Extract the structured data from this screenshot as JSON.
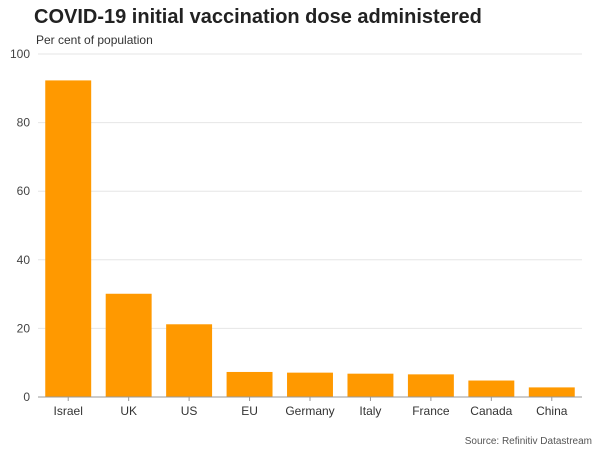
{
  "chart_data": {
    "type": "bar",
    "title": "COVID-19 initial vaccination dose administered",
    "subtitle": "Per cent of population",
    "source": "Source: Refinitiv Datastream",
    "categories": [
      "Israel",
      "UK",
      "US",
      "EU",
      "Germany",
      "Italy",
      "France",
      "Canada",
      "China"
    ],
    "values": [
      92.3,
      30.1,
      21.2,
      7.3,
      7.1,
      6.8,
      6.6,
      4.8,
      2.8
    ],
    "ylim": [
      0,
      100
    ],
    "yticks": [
      0,
      20,
      40,
      60,
      80,
      100
    ],
    "xlabel": "",
    "ylabel": "",
    "grid": true,
    "bar_color": "#FF9900"
  }
}
